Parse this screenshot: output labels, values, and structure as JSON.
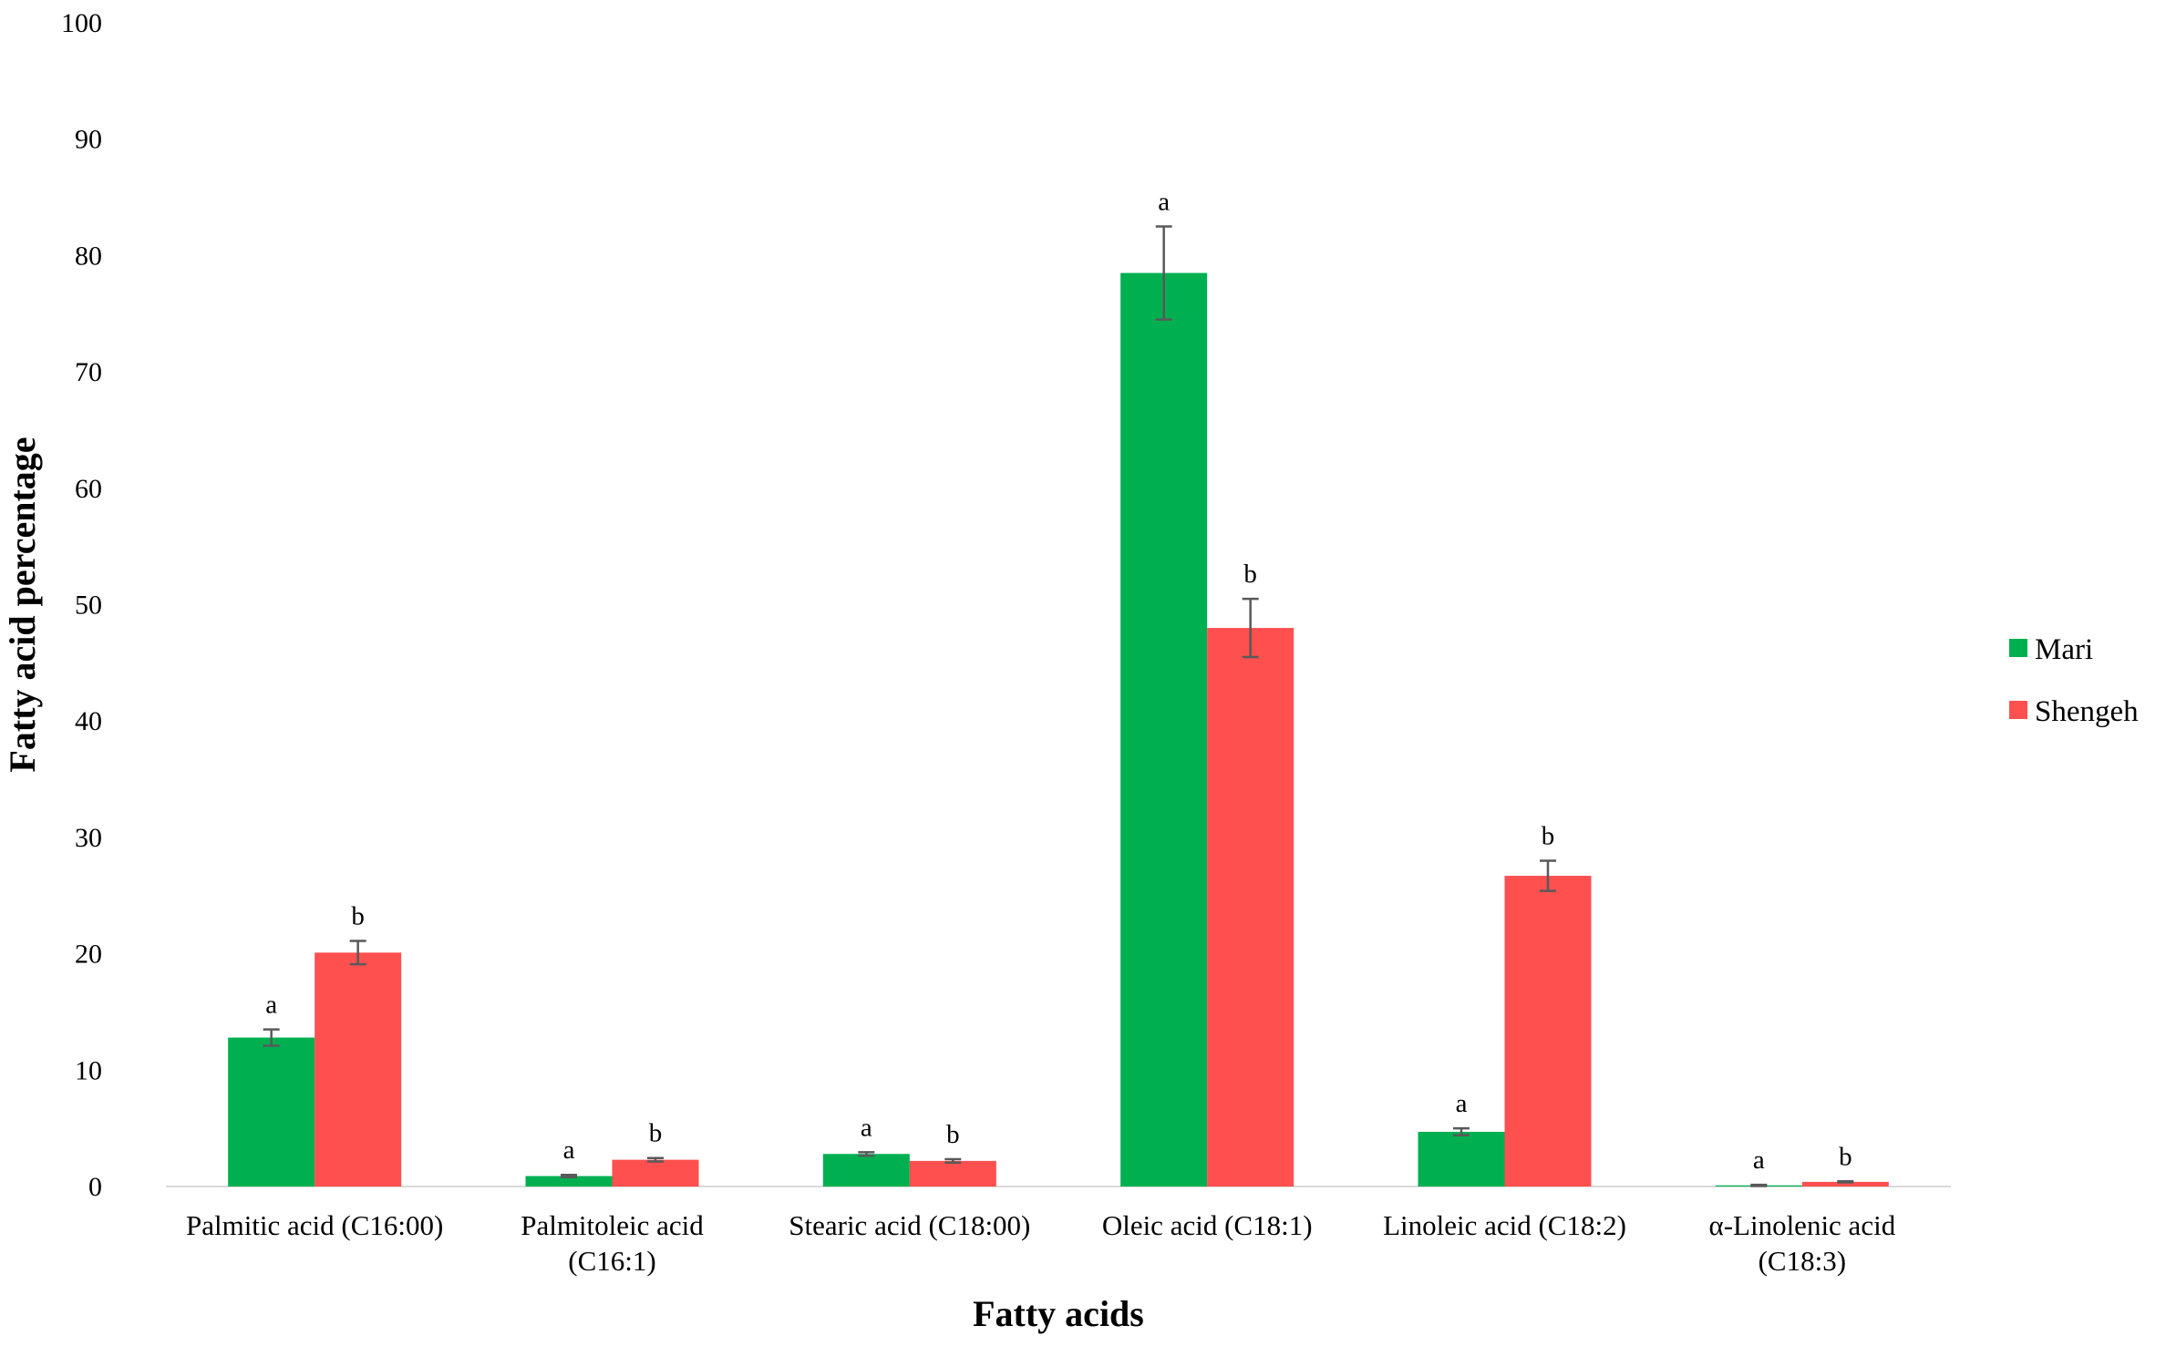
{
  "chart_data": {
    "type": "bar",
    "title": "",
    "xlabel": "Fatty acids",
    "ylabel": "Fatty acid percentage",
    "ylim": [
      0,
      100
    ],
    "yticks": [
      0,
      10,
      20,
      30,
      40,
      50,
      60,
      70,
      80,
      90,
      100
    ],
    "grid": false,
    "legend_position": "right",
    "categories": [
      [
        "Palmitic acid (C16:00)"
      ],
      [
        "Palmitoleic acid",
        "(C16:1)"
      ],
      [
        "Stearic acid (C18:00)"
      ],
      [
        "Oleic acid (C18:1)"
      ],
      [
        "Linoleic acid (C18:2)"
      ],
      [
        "α-Linolenic acid",
        "(C18:3)"
      ]
    ],
    "series": [
      {
        "name": "Mari",
        "color": "#00b050",
        "values": [
          12.8,
          0.9,
          2.8,
          78.5,
          4.7,
          0.1
        ],
        "errors": [
          0.7,
          0.1,
          0.15,
          4.0,
          0.3,
          0.05
        ],
        "significance": [
          "a",
          "a",
          "a",
          "a",
          "a",
          "a"
        ]
      },
      {
        "name": "Shengeh",
        "color": "#ff5050",
        "values": [
          20.1,
          2.3,
          2.2,
          48.0,
          26.7,
          0.4
        ],
        "errors": [
          1.0,
          0.15,
          0.15,
          2.5,
          1.3,
          0.05
        ],
        "significance": [
          "b",
          "b",
          "b",
          "b",
          "b",
          "b"
        ]
      }
    ],
    "error_bar_color": "#595959",
    "axis_color": "#d9d9d9"
  }
}
